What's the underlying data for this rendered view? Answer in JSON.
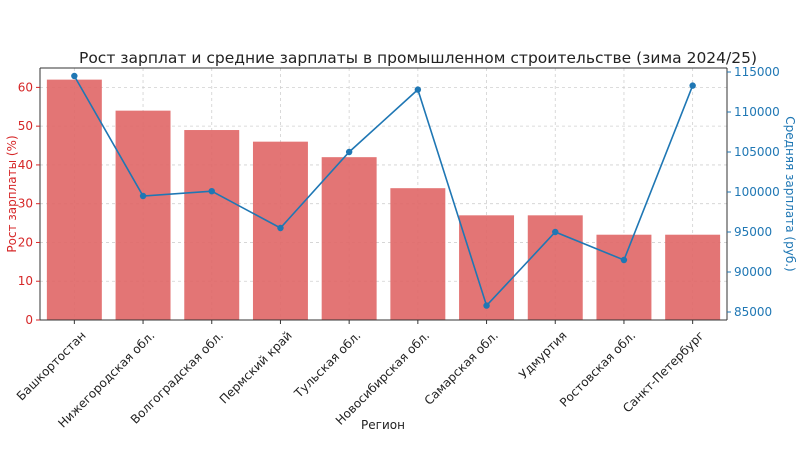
{
  "chart_data": {
    "type": "bar",
    "title": "Рост зарплат и средние зарплаты в промышленном строительстве (зима 2024/25)",
    "xlabel": "Регион",
    "ylabel": "Рост зарплаты (%)",
    "y2label": "Средняя зарплата (руб.)",
    "categories": [
      "Башкортостан",
      "Нижегородская обл.",
      "Волгоградская обл.",
      "Пермский край",
      "Тульская обл.",
      "Новосибирская обл.",
      "Самарская обл.",
      "Удмуртия",
      "Ростовская обл.",
      "Санкт-Петербург"
    ],
    "series": [
      {
        "type": "bar",
        "axis": "left",
        "values": [
          62,
          54,
          49,
          46,
          42,
          34,
          27,
          27,
          22,
          22
        ],
        "color": "#e06666"
      },
      {
        "type": "line",
        "axis": "right",
        "values": [
          114500,
          99500,
          100100,
          95500,
          105000,
          112800,
          85800,
          95000,
          91500,
          113300
        ],
        "color": "#1f77b4"
      }
    ],
    "ylim": [
      0,
      65
    ],
    "y2lim": [
      84000,
      115500
    ],
    "yticks": [
      "0",
      "10",
      "20",
      "30",
      "40",
      "50",
      "60"
    ],
    "y2ticks": [
      "85000",
      "90000",
      "95000",
      "100000",
      "105000",
      "110000",
      "115000"
    ],
    "grid": true,
    "colors": {
      "left_axis": "#d62728",
      "right_axis": "#1f77b4"
    }
  }
}
